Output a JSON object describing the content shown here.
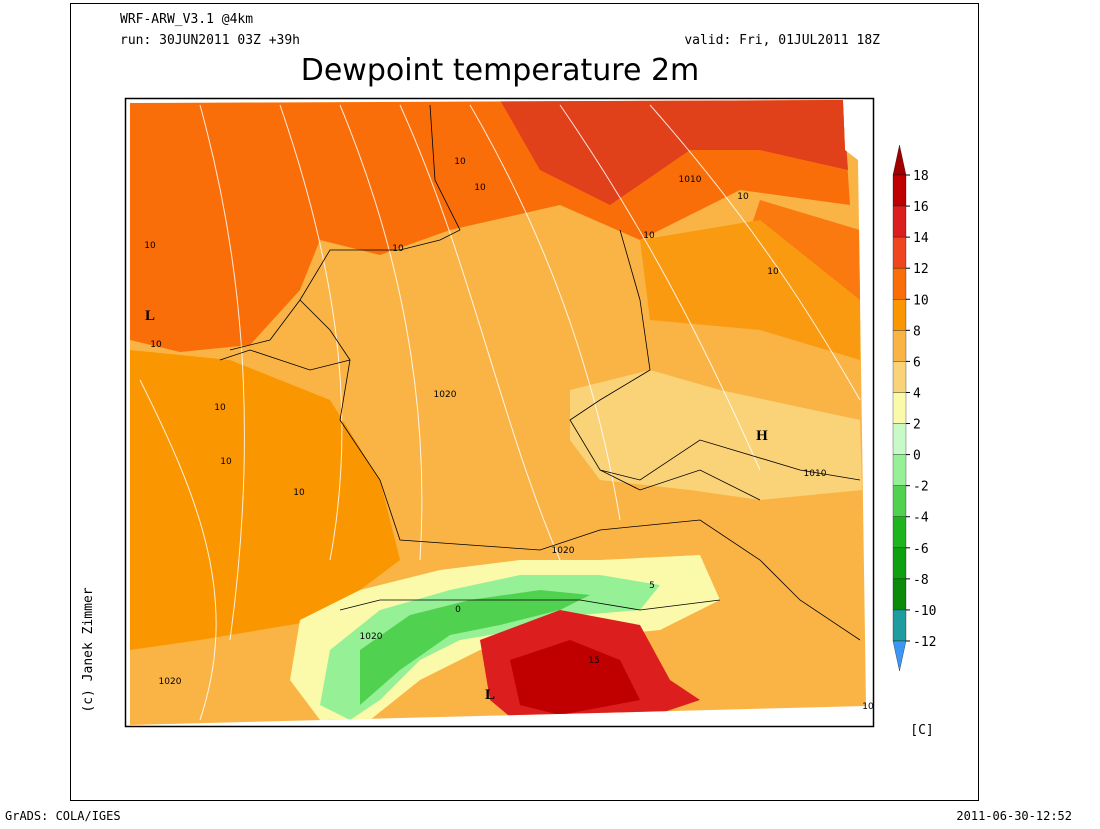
{
  "header": {
    "model": "WRF-ARW_V3.1 @4km",
    "run": "run: 30JUN2011 03Z +39h",
    "valid": "valid: Fri, 01JUL2011 18Z"
  },
  "title": "Dewpoint temperature 2m",
  "colorbar": {
    "levels": [
      18,
      16,
      14,
      12,
      10,
      8,
      6,
      4,
      2,
      0,
      -2,
      -4,
      -6,
      -8,
      -10,
      -12
    ],
    "colors": [
      "#a00000",
      "#c00000",
      "#dc1e1e",
      "#f0461e",
      "#fa6e0a",
      "#fa9600",
      "#fab446",
      "#fad278",
      "#fafaaa",
      "#c8fac8",
      "#96f096",
      "#50d250",
      "#1eb41e",
      "#0fa00f",
      "#0a8c0a",
      "#1e9ca0",
      "#3c96f5"
    ],
    "unit": "[C]"
  },
  "credit": "(c) Janek Zimmer",
  "footer": {
    "left": "GrADS: COLA/IGES",
    "right": "2011-06-30-12:52"
  },
  "map_labels": [
    "10",
    "10",
    "1010",
    "10",
    "10",
    "10",
    "10",
    "10",
    "1020",
    "10",
    "10",
    "10",
    "10",
    "1010",
    "1020",
    "1020",
    "1020",
    "L",
    "L",
    "H",
    "5",
    "0",
    "15",
    "10"
  ]
}
